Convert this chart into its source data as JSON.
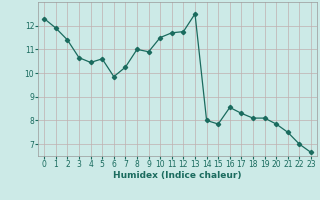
{
  "x": [
    0,
    1,
    2,
    3,
    4,
    5,
    6,
    7,
    8,
    9,
    10,
    11,
    12,
    13,
    14,
    15,
    16,
    17,
    18,
    19,
    20,
    21,
    22,
    23
  ],
  "y": [
    12.3,
    11.9,
    11.4,
    10.65,
    10.45,
    10.6,
    9.85,
    10.25,
    11.0,
    10.9,
    11.5,
    11.7,
    11.75,
    12.5,
    8.0,
    7.85,
    8.55,
    8.3,
    8.1,
    8.1,
    7.85,
    7.5,
    7.0,
    6.65
  ],
  "line_color": "#1a6b5e",
  "marker": "D",
  "marker_size": 2.2,
  "xlabel": "Humidex (Indice chaleur)",
  "xlim": [
    -0.5,
    23.5
  ],
  "ylim": [
    6.5,
    13.0
  ],
  "yticks": [
    7,
    8,
    9,
    10,
    11,
    12
  ],
  "xticks": [
    0,
    1,
    2,
    3,
    4,
    5,
    6,
    7,
    8,
    9,
    10,
    11,
    12,
    13,
    14,
    15,
    16,
    17,
    18,
    19,
    20,
    21,
    22,
    23
  ],
  "bg_color": "#cceae7",
  "grid_color": "#c0b0b0",
  "tick_label_fontsize": 5.5,
  "xlabel_fontsize": 6.5,
  "linewidth": 0.9
}
